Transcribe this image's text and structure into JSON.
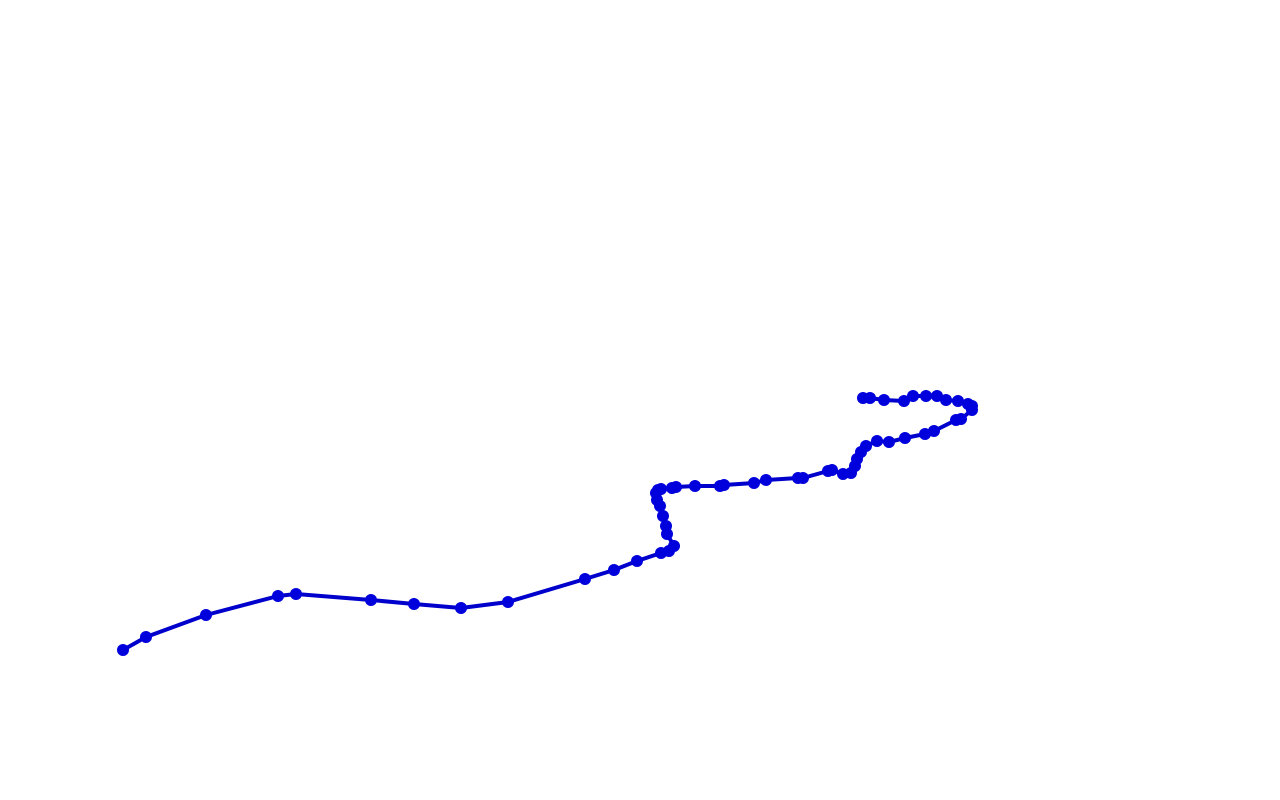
{
  "route": {
    "line_color": "#0000cc",
    "point_color": "#0000dd",
    "point_count": 68
  }
}
